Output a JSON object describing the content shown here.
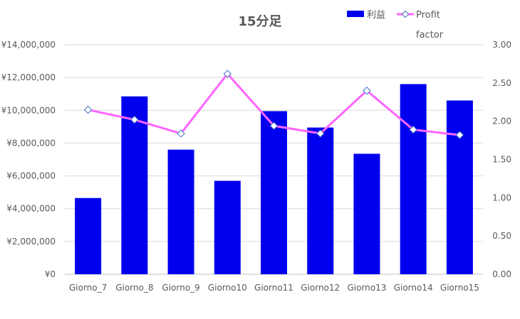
{
  "chart_data": {
    "type": "bar",
    "title": "15分足",
    "categories": [
      "Giorno_7",
      "Giorno_8",
      "Giorno_9",
      "Giorno10",
      "Giorno11",
      "Giorno12",
      "Giorno13",
      "Giorno14",
      "Giorno15"
    ],
    "series": [
      {
        "name": "利益",
        "type": "bar",
        "axis": "left",
        "color": "#0000ee",
        "values": [
          4650000,
          10850000,
          7600000,
          5700000,
          9950000,
          8950000,
          7350000,
          11600000,
          10600000
        ]
      },
      {
        "name": "Profit factor",
        "legend_lines": [
          "Profit",
          "factor"
        ],
        "type": "line",
        "axis": "right",
        "color": "#ff66ff",
        "marker": "diamond",
        "values": [
          2.15,
          2.02,
          1.84,
          2.62,
          1.94,
          1.84,
          2.4,
          1.89,
          1.82
        ]
      }
    ],
    "y_left": {
      "ylim": [
        0,
        14000000
      ],
      "ticks": [
        0,
        2000000,
        4000000,
        6000000,
        8000000,
        10000000,
        12000000,
        14000000
      ],
      "tick_labels": [
        "¥0",
        "¥2,000,000",
        "¥4,000,000",
        "¥6,000,000",
        "¥8,000,000",
        "¥10,000,000",
        "¥12,000,000",
        "¥14,000,000"
      ]
    },
    "y_right": {
      "ylim": [
        0,
        3
      ],
      "ticks": [
        0,
        0.5,
        1,
        1.5,
        2,
        2.5,
        3
      ],
      "tick_labels": [
        "0.00",
        "0.50",
        "1.00",
        "1.50",
        "2.00",
        "2.50",
        "3.00"
      ]
    },
    "grid": true,
    "legend_position": "top-right"
  }
}
